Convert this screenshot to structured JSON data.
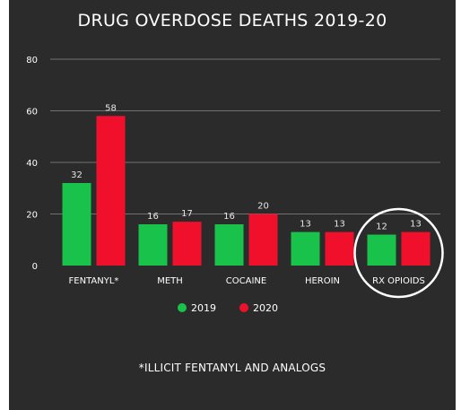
{
  "chart_data": {
    "type": "bar",
    "title": "DRUG OVERDOSE DEATHS 2019-20",
    "categories": [
      "FENTANYL*",
      "METH",
      "COCAINE",
      "HEROIN",
      "RX OPIOIDS"
    ],
    "series": [
      {
        "name": "2019",
        "values": [
          32,
          16,
          16,
          13,
          12
        ],
        "color": "#19c24a"
      },
      {
        "name": "2020",
        "values": [
          58,
          17,
          20,
          13,
          13
        ],
        "color": "#f0102c"
      }
    ],
    "yticks": [
      "0",
      "20",
      "40",
      "60",
      "80"
    ],
    "ylim": [
      0,
      80
    ],
    "xlabel": "",
    "ylabel": "",
    "grid": true,
    "legend_position": "bottom-center",
    "highlighted_category": "RX OPIOIDS",
    "footnote": "*ILLICIT FENTANYL AND ANALOGS"
  },
  "colors": {
    "background": "#2b2b2b",
    "text": "#ffffff",
    "grid": "#8a8a8a",
    "value_label": "#e6e6e6"
  }
}
